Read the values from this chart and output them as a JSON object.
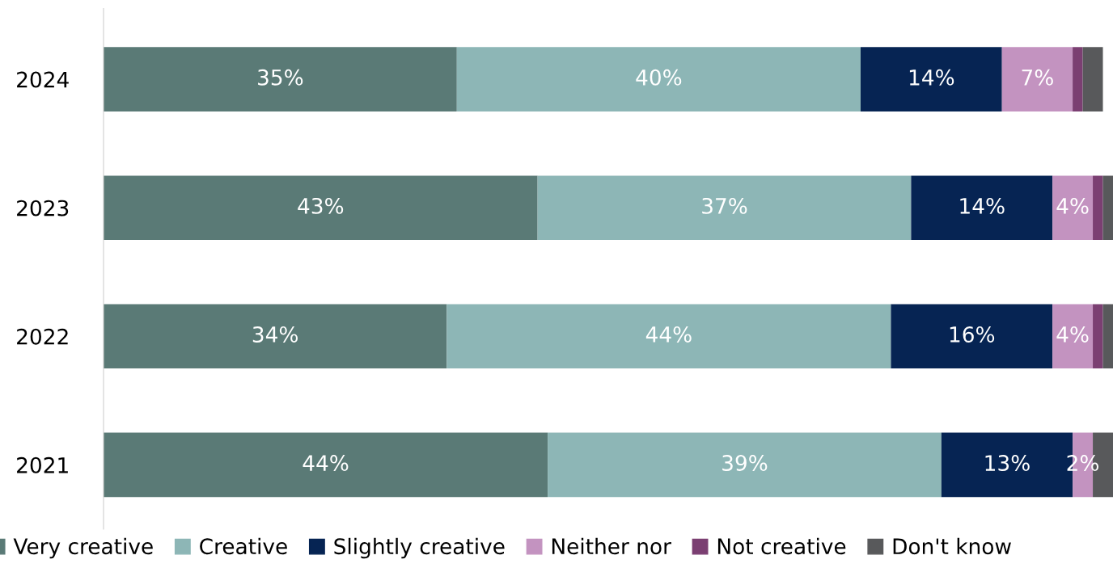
{
  "chart_data": {
    "type": "bar",
    "orientation": "horizontal",
    "stacked": true,
    "legend": "bottom",
    "grid": false,
    "categories": [
      "2024",
      "2023",
      "2022",
      "2021"
    ],
    "series": [
      {
        "name": "Very creative",
        "color": "#5a7a76",
        "values": [
          35,
          43,
          34,
          44
        ],
        "value_labels": [
          "35%",
          "43%",
          "34%",
          "44%"
        ]
      },
      {
        "name": "Creative",
        "color": "#8db6b6",
        "values": [
          40,
          37,
          44,
          39
        ],
        "value_labels": [
          "40%",
          "37%",
          "44%",
          "39%"
        ]
      },
      {
        "name": "Slightly creative",
        "color": "#062453",
        "values": [
          14,
          14,
          16,
          13
        ],
        "value_labels": [
          "14%",
          "14%",
          "16%",
          "13%"
        ]
      },
      {
        "name": "Neither nor",
        "color": "#c393c0",
        "values": [
          7,
          4,
          4,
          2
        ],
        "value_labels": [
          "7%",
          "4%",
          "4%",
          "2%"
        ]
      },
      {
        "name": "Not creative",
        "color": "#7b3f72",
        "values": [
          1,
          1,
          1,
          0
        ],
        "value_labels": [
          null,
          null,
          null,
          null
        ]
      },
      {
        "name": "Don't know",
        "color": "#58595b",
        "values": [
          2,
          1,
          1,
          2
        ],
        "value_labels": [
          null,
          null,
          null,
          null
        ]
      }
    ]
  }
}
